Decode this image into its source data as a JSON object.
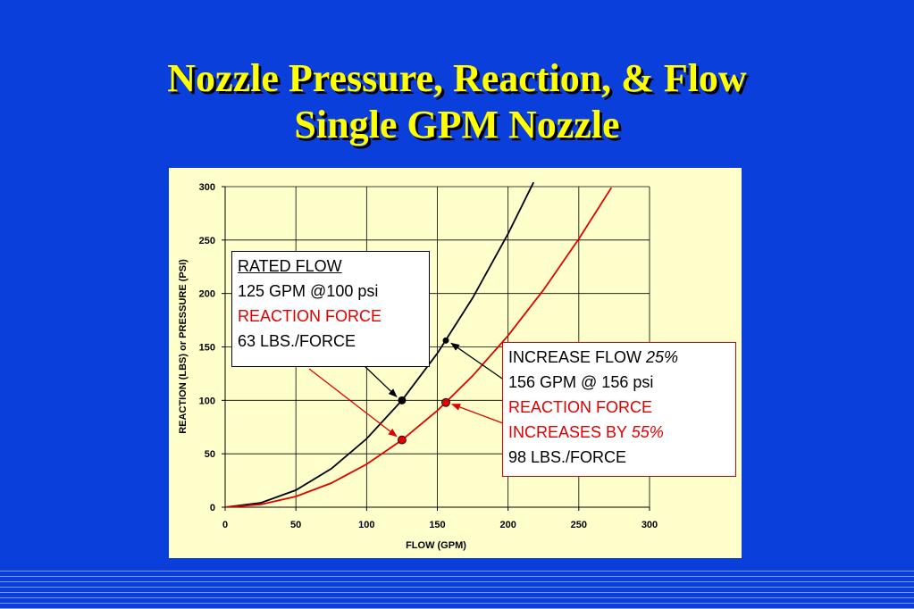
{
  "slide": {
    "title_line1": "Nozzle Pressure, Reaction, & Flow",
    "title_line2": "Single GPM Nozzle"
  },
  "colors": {
    "background": "#0a3fdc",
    "title": "#ffff00",
    "panel": "#ffffcc",
    "pressure_curve": "#000000",
    "reaction_curve": "#e00000"
  },
  "callouts": {
    "rated": {
      "heading": "RATED FLOW",
      "line1": "125 GPM @100 psi",
      "line2": "REACTION FORCE",
      "line3": "63 LBS./FORCE"
    },
    "increase": {
      "heading": "INCREASE FLOW ",
      "heading_pct": "25%",
      "line1": "156 GPM @ 156 psi",
      "line2": "REACTION FORCE",
      "line3": "INCREASES BY ",
      "line3_pct": "55%",
      "line4": "98 LBS./FORCE"
    }
  },
  "chart_data": {
    "type": "line",
    "title": "",
    "xlabel": "FLOW (GPM)",
    "ylabel": "REACTION (LBS) or PRESSURE (PSI)",
    "xlim": [
      0,
      300
    ],
    "ylim": [
      0,
      300
    ],
    "xticks": [
      "0",
      "50",
      "100",
      "150",
      "200",
      "250",
      "300"
    ],
    "yticks": [
      "0",
      "50",
      "100",
      "150",
      "200",
      "250",
      "300"
    ],
    "grid": true,
    "legend": "none",
    "series": [
      {
        "color": "#000000",
        "x": [
          0,
          25,
          50,
          75,
          100,
          125,
          150,
          175,
          200,
          218
        ],
        "y": [
          0,
          4,
          16,
          36,
          64,
          100,
          144,
          196,
          256,
          304
        ]
      },
      {
        "color": "#e00000",
        "x": [
          0,
          25,
          50,
          75,
          100,
          125,
          150,
          175,
          200,
          225,
          250,
          273
        ],
        "y": [
          0,
          2.5,
          10,
          22.6,
          40.2,
          62.8,
          90.4,
          123,
          160.6,
          203.3,
          251,
          299
        ]
      }
    ],
    "markers": [
      {
        "x": 125,
        "y": 100,
        "color": "#000000"
      },
      {
        "x": 156,
        "y": 156,
        "color": "#000000"
      },
      {
        "x": 125,
        "y": 63,
        "color": "#e00000"
      },
      {
        "x": 156,
        "y": 98,
        "color": "#e00000"
      }
    ]
  }
}
